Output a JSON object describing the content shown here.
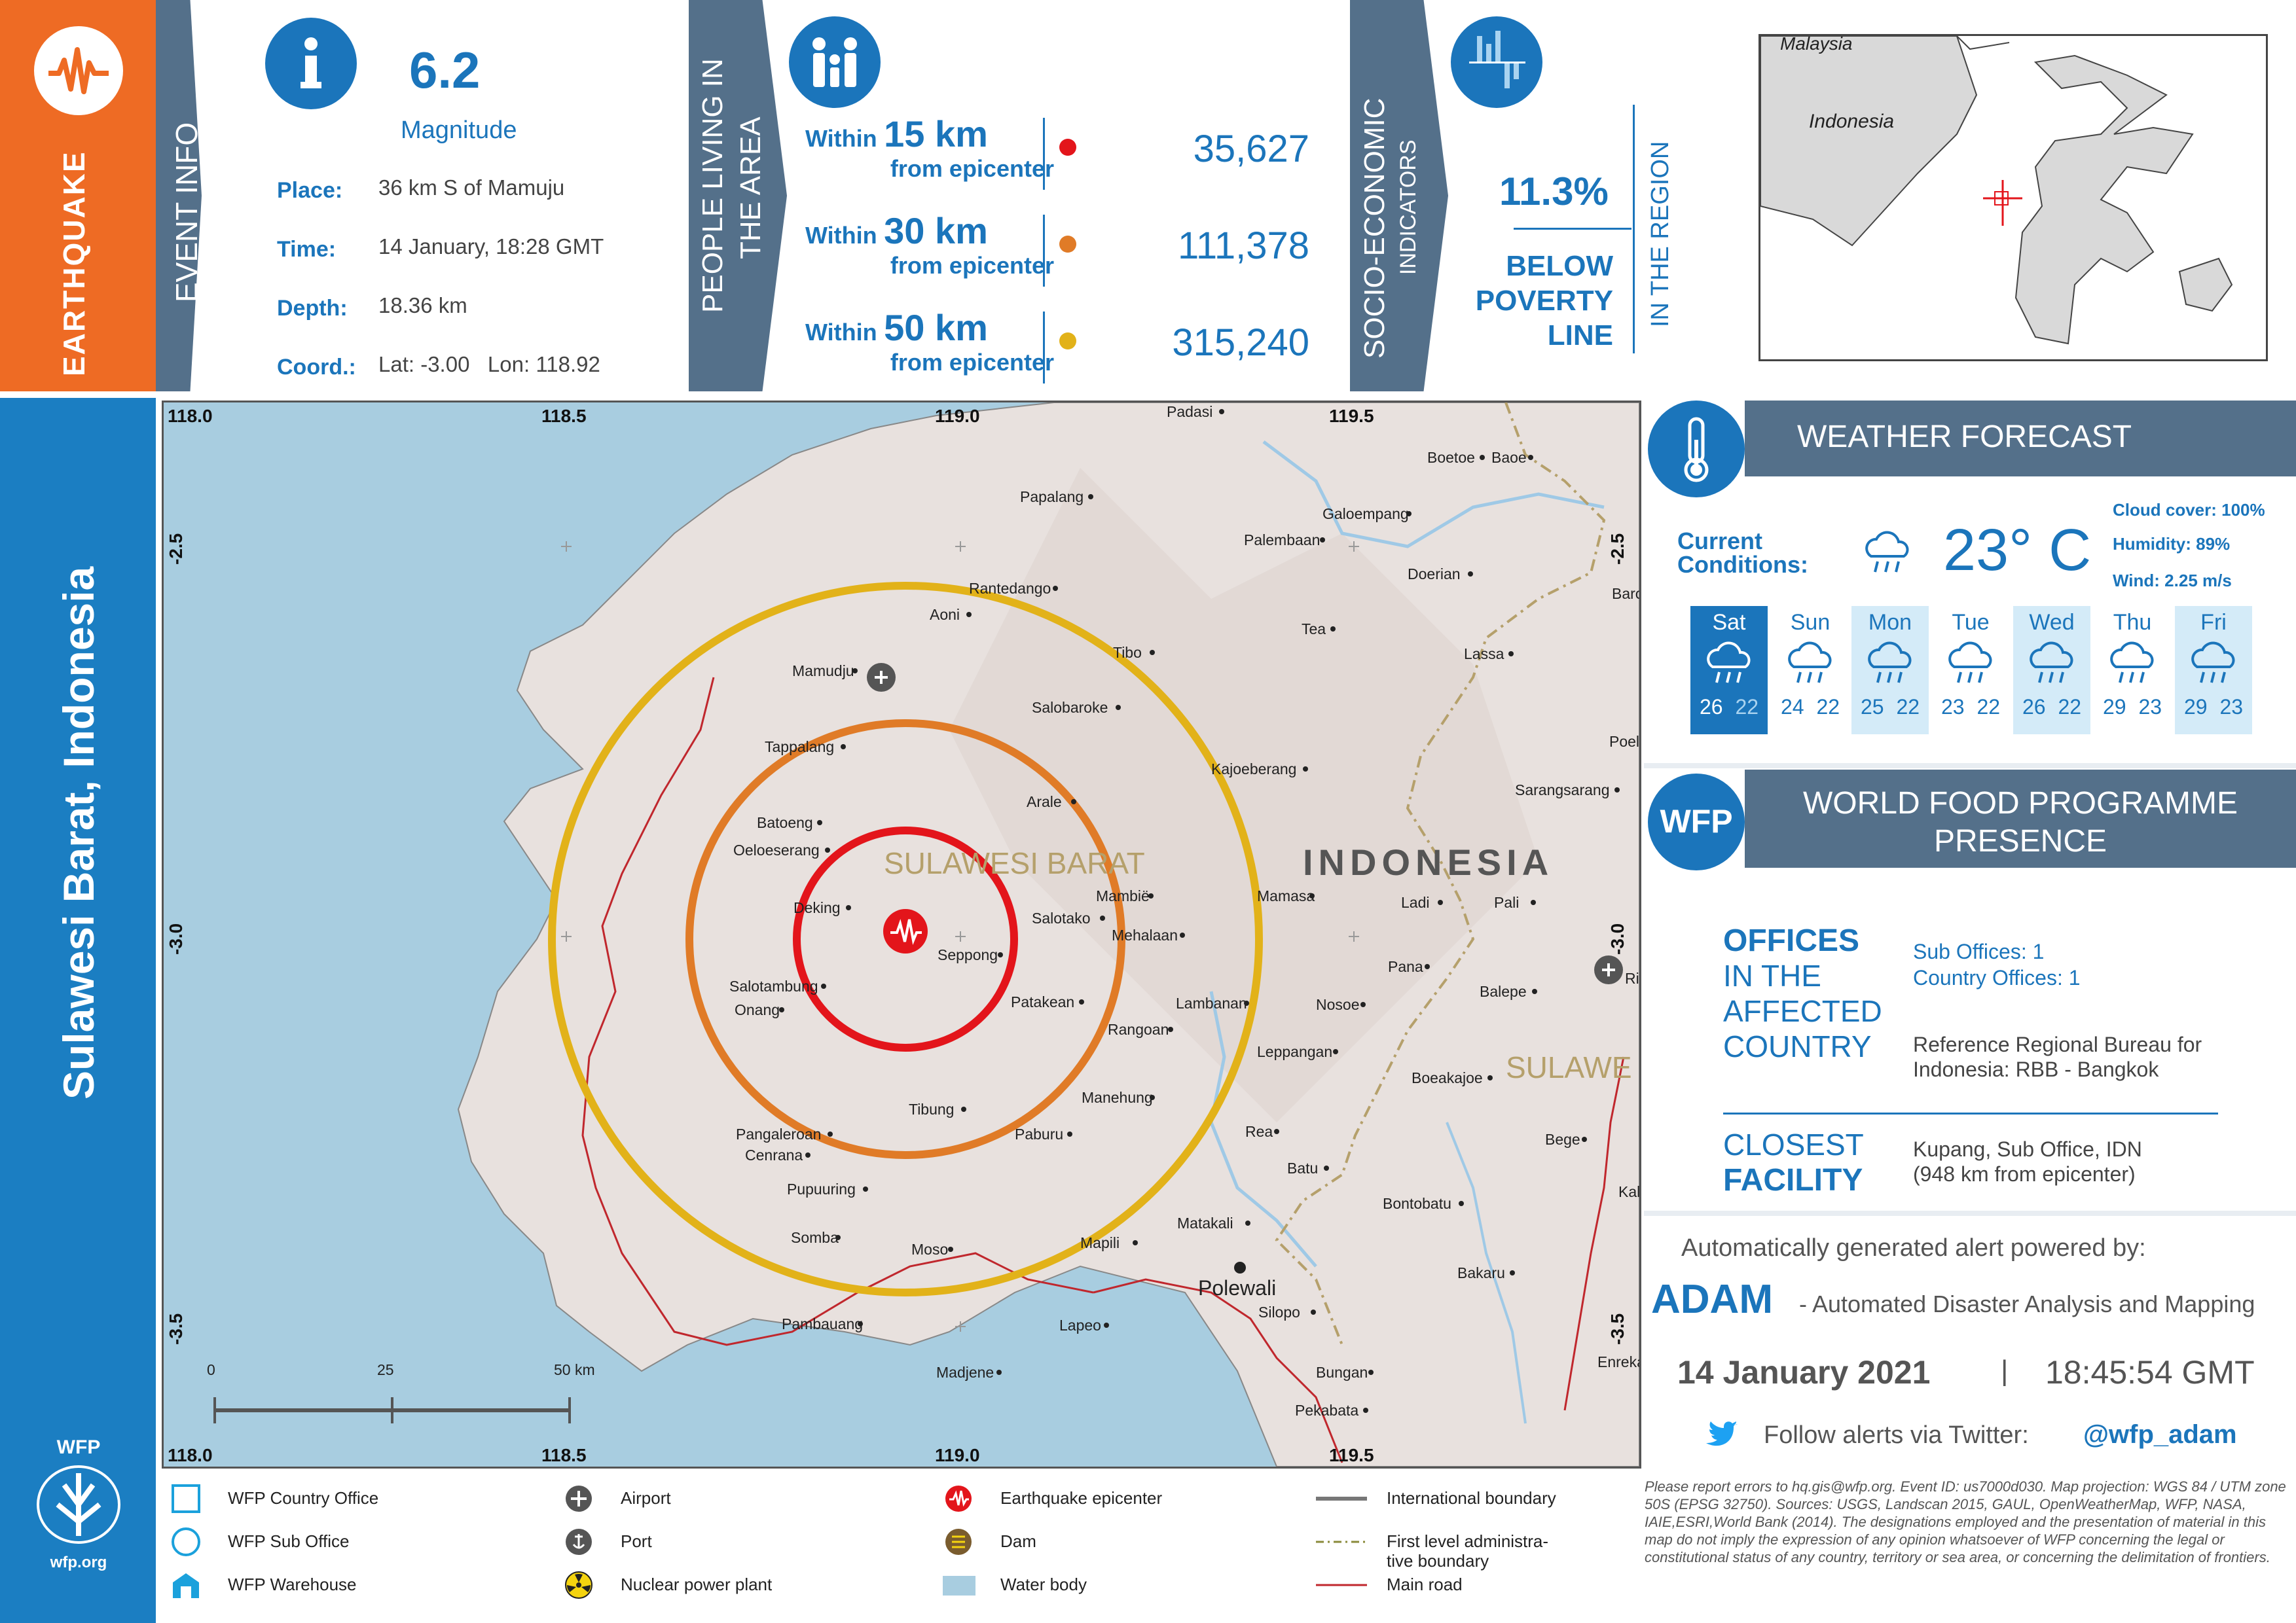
{
  "header": {
    "hazard_type": "EARTHQUAKE",
    "country_title": "Sulawesi Barat, Indonesia",
    "event_info_title": "EVENT INFO",
    "magnitude": "6.2",
    "magnitude_label": "Magnitude",
    "place_label": "Place:",
    "place_value": "36 km S of Mamuju",
    "time_label": "Time:",
    "time_value": "14 January, 18:28 GMT",
    "depth_label": "Depth:",
    "depth_value": "18.36 km",
    "coord_label": "Coord.:",
    "coord_value": "Lat: -3.00   Lon: 118.92"
  },
  "population": {
    "title_line1": "PEOPLE LIVING IN",
    "title_line2": "THE AREA",
    "rows": [
      {
        "prefix": "Within",
        "distance": "15 km",
        "suffix": "from epicenter",
        "count": "35,627",
        "color": "#e3151b"
      },
      {
        "prefix": "Within",
        "distance": "30 km",
        "suffix": "from epicenter",
        "count": "111,378",
        "color": "#e07b27"
      },
      {
        "prefix": "Within",
        "distance": "50 km",
        "suffix": "from epicenter",
        "count": "315,240",
        "color": "#e2b219"
      }
    ]
  },
  "socio": {
    "title_line1": "SOCIO-ECONOMIC",
    "title_line2": "INDICATORS",
    "percent": "11.3%",
    "line1": "BELOW",
    "line2": "POVERTY",
    "line3": "LINE",
    "region_note": "IN THE REGION"
  },
  "inset_map": {
    "label_malaysia": "Malaysia",
    "label_indonesia": "Indonesia"
  },
  "weather": {
    "title": "WEATHER FORECAST",
    "current_label_1": "Current",
    "current_label_2": "Conditions:",
    "temperature": "23° C",
    "cloud_cover": "Cloud cover: 100%",
    "humidity": "Humidity: 89%",
    "wind": "Wind: 2.25 m/s",
    "days": [
      {
        "day": "Sat",
        "high": "26",
        "low": "22",
        "style": "selected"
      },
      {
        "day": "Sun",
        "high": "24",
        "low": "22",
        "style": "plain"
      },
      {
        "day": "Mon",
        "high": "25",
        "low": "22",
        "style": "light"
      },
      {
        "day": "Tue",
        "high": "23",
        "low": "22",
        "style": "plain"
      },
      {
        "day": "Wed",
        "high": "26",
        "low": "22",
        "style": "light"
      },
      {
        "day": "Thu",
        "high": "29",
        "low": "23",
        "style": "plain"
      },
      {
        "day": "Fri",
        "high": "29",
        "low": "23",
        "style": "light"
      }
    ]
  },
  "wfp": {
    "badge": "WFP",
    "title_line1": "WORLD FOOD PROGRAMME",
    "title_line2": "PRESENCE",
    "offices_1": "OFFICES",
    "offices_2": "IN THE",
    "offices_3": "AFFECTED",
    "offices_4": "COUNTRY",
    "sub_offices": "Sub Offices: 1",
    "country_offices": "Country Offices: 1",
    "regional_1": "Reference Regional Bureau for",
    "regional_2": "Indonesia: RBB - Bangkok",
    "closest_1": "CLOSEST",
    "closest_2": "FACILITY",
    "facility_1": "Kupang, Sub Office, IDN",
    "facility_2": "(948 km from epicenter)"
  },
  "footer_right": {
    "powered_by": "Automatically generated alert powered by:",
    "adam": "ADAM",
    "adam_desc": "- Automated Disaster Analysis and Mapping",
    "date": "14 January 2021",
    "separator": "|",
    "time": "18:45:54 GMT",
    "twitter_text": "Follow alerts via Twitter:",
    "twitter_handle": "@wfp_adam"
  },
  "disclaimer": "Please report errors to hq.gis@wfp.org. Event ID: us7000d030. Map projection: WGS 84 / UTM zone 50S (EPSG 32750). Sources: USGS, Landscan 2015, GAUL, OpenWeatherMap, WFP, NASA, IAIE,ESRI,World Bank (2014). The designations employed and the presentation of material in this map do not imply the expression of any opinion whatsoever of WFP concerning the legal or constitutional status of any country, territory or sea area, or concerning the delimitation of frontiers.",
  "logo": {
    "top": "WFP",
    "bottom": "wfp.org"
  },
  "legend": [
    {
      "icon": "wfp-country-office-icon",
      "label": "WFP Country Office"
    },
    {
      "icon": "wfp-sub-office-icon",
      "label": "WFP Sub Office"
    },
    {
      "icon": "wfp-warehouse-icon",
      "label": "WFP Warehouse"
    },
    {
      "icon": "airport-icon",
      "label": "Airport"
    },
    {
      "icon": "port-icon",
      "label": "Port"
    },
    {
      "icon": "nuclear-icon",
      "label": "Nuclear power plant"
    },
    {
      "icon": "epicenter-icon",
      "label": "Earthquake epicenter"
    },
    {
      "icon": "dam-icon",
      "label": "Dam"
    },
    {
      "icon": "water-body-icon",
      "label": "Water body"
    },
    {
      "icon": "international-boundary-icon",
      "label": "International boundary"
    },
    {
      "icon": "admin-boundary-icon",
      "label": "First level administra-\ntive boundary"
    },
    {
      "icon": "main-road-icon",
      "label": "Main road"
    }
  ],
  "map": {
    "region_label": "SULAWESI BARAT",
    "country_label": "INDONESIA",
    "region_label_2": "SULAWE",
    "city_polewali": "Polewali",
    "lon_ticks": [
      "118.0",
      "118.5",
      "119.0",
      "119.5"
    ],
    "lat_ticks": [
      "-2.5",
      "-3.0",
      "-3.5"
    ],
    "scale_labels": [
      "0",
      "25",
      "50 km"
    ],
    "towns": [
      "Padasi",
      "Boetoe",
      "Baoe",
      "Papalang",
      "Galoempang",
      "Palembaan",
      "Rantedango",
      "Aoni",
      "Doerian",
      "Barong",
      "Tea",
      "Tibo",
      "Lassa",
      "Mamudju",
      "Salobaroke",
      "Tappalang",
      "Kajoeberang",
      "Poeloek",
      "Arale",
      "Sarangsarang",
      "Batoeng",
      "Oeloeserang",
      "Mambië",
      "Mamasa",
      "Ladi",
      "Pali",
      "Deking",
      "Salotako",
      "Mehalaan",
      "Seppong",
      "Pana",
      "Salotambung",
      "Onang",
      "Patakean",
      "Lambanan",
      "Nosoe",
      "Balepe",
      "Rimboeng",
      "Rangoan",
      "Leppangan",
      "Boeakajoe",
      "Tibung",
      "Manehung",
      "Pangaleroan",
      "Paburu",
      "Rea",
      "Bege",
      "Cenrana",
      "Batu",
      "Pupuuring",
      "Kalo",
      "Bontobatu",
      "Somba",
      "Matakali",
      "Moso",
      "Mapili",
      "Bakaru",
      "Silopo",
      "Pambauang",
      "Lapeo",
      "Enrekang",
      "Madjene",
      "Bungan",
      "Pekabata"
    ]
  }
}
